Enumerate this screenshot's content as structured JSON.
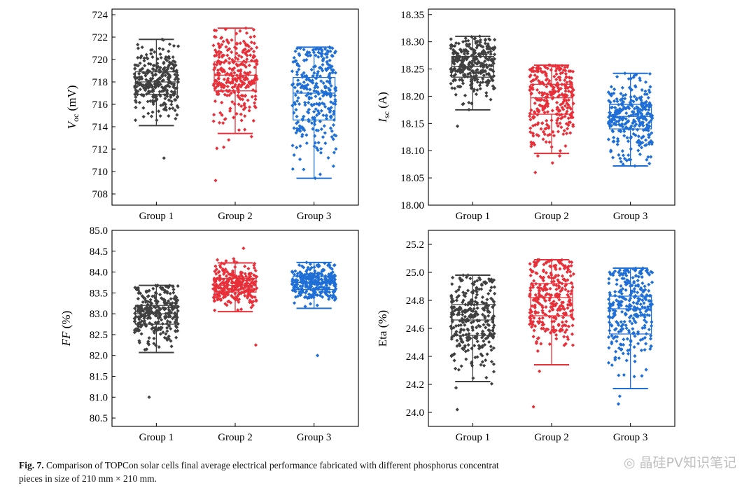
{
  "colors": {
    "group1": "#404040",
    "group2": "#e8303a",
    "group3": "#1f6fd6"
  },
  "caption": {
    "label": "Fig. 7.",
    "text": "Comparison of TOPCon solar cells final average electrical performance fabricated with different phosphorus concentrat",
    "text2": "pieces in size of 210 mm × 210 mm."
  },
  "watermark": {
    "text": "晶硅PV知识笔记",
    "icon": "wechat-icon"
  },
  "chart_data": [
    {
      "type": "box",
      "ylabel_main": "V",
      "ylabel_sub": "oc",
      "ylabel_unit": " (mV)",
      "categories": [
        "Group 1",
        "Group 2",
        "Group 3"
      ],
      "ylim": [
        707,
        724.5
      ],
      "yticks": [
        708,
        710,
        712,
        714,
        716,
        718,
        720,
        722,
        724
      ],
      "decimals": 0,
      "series": [
        {
          "q1": 716.9,
          "median": 718.0,
          "q3": 718.9,
          "whisker_low": 714.1,
          "whisker_high": 721.8,
          "min": 711.2,
          "max": 721.8
        },
        {
          "q1": 717.2,
          "median": 718.6,
          "q3": 719.8,
          "whisker_low": 713.4,
          "whisker_high": 722.8,
          "min": 709.2,
          "max": 722.8
        },
        {
          "q1": 714.6,
          "median": 717.0,
          "q3": 718.4,
          "whisker_low": 709.4,
          "whisker_high": 721.1,
          "min": 709.4,
          "max": 721.1
        }
      ]
    },
    {
      "type": "box",
      "ylabel_main": "I",
      "ylabel_sub": "sc",
      "ylabel_unit": " (A)",
      "categories": [
        "Group 1",
        "Group 2",
        "Group 3"
      ],
      "ylim": [
        18.0,
        18.36
      ],
      "yticks": [
        18.0,
        18.05,
        18.1,
        18.15,
        18.2,
        18.25,
        18.3,
        18.35
      ],
      "decimals": 2,
      "series": [
        {
          "q1": 18.235,
          "median": 18.255,
          "q3": 18.273,
          "whisker_low": 18.175,
          "whisker_high": 18.31,
          "min": 18.145,
          "max": 18.31
        },
        {
          "q1": 18.167,
          "median": 18.197,
          "q3": 18.222,
          "whisker_low": 18.095,
          "whisker_high": 18.257,
          "min": 18.06,
          "max": 18.257
        },
        {
          "q1": 18.14,
          "median": 18.163,
          "q3": 18.185,
          "whisker_low": 18.072,
          "whisker_high": 18.242,
          "min": 18.072,
          "max": 18.242
        }
      ]
    },
    {
      "type": "box",
      "ylabel_main": "FF",
      "ylabel_sub": "",
      "ylabel_unit": " (%)",
      "categories": [
        "Group 1",
        "Group 2",
        "Group 3"
      ],
      "ylim": [
        80.3,
        85.0
      ],
      "yticks": [
        80.5,
        81.0,
        81.5,
        82.0,
        82.5,
        83.0,
        83.5,
        84.0,
        84.5,
        85.0
      ],
      "decimals": 1,
      "series": [
        {
          "q1": 82.75,
          "median": 83.0,
          "q3": 83.2,
          "whisker_low": 82.07,
          "whisker_high": 83.68,
          "min": 81.0,
          "max": 83.68
        },
        {
          "q1": 83.52,
          "median": 83.68,
          "q3": 83.85,
          "whisker_low": 83.05,
          "whisker_high": 84.22,
          "min": 82.25,
          "max": 84.57
        },
        {
          "q1": 83.58,
          "median": 83.75,
          "q3": 83.9,
          "whisker_low": 83.13,
          "whisker_high": 84.23,
          "min": 82.0,
          "max": 84.23
        }
      ]
    },
    {
      "type": "box",
      "ylabel_main": "Eta (%)",
      "ylabel_sub": "",
      "ylabel_unit": "",
      "categories": [
        "Group 1",
        "Group 2",
        "Group 3"
      ],
      "ylim": [
        23.9,
        25.3
      ],
      "yticks": [
        24.0,
        24.2,
        24.4,
        24.6,
        24.8,
        25.0,
        25.2
      ],
      "decimals": 1,
      "series": [
        {
          "q1": 24.55,
          "median": 24.66,
          "q3": 24.77,
          "whisker_low": 24.22,
          "whisker_high": 24.98,
          "min": 24.02,
          "max": 24.98
        },
        {
          "q1": 24.69,
          "median": 24.82,
          "q3": 24.92,
          "whisker_low": 24.34,
          "whisker_high": 25.09,
          "min": 24.04,
          "max": 25.09
        },
        {
          "q1": 24.56,
          "median": 24.74,
          "q3": 24.83,
          "whisker_low": 24.17,
          "whisker_high": 25.03,
          "min": 24.06,
          "max": 25.03
        }
      ]
    }
  ]
}
